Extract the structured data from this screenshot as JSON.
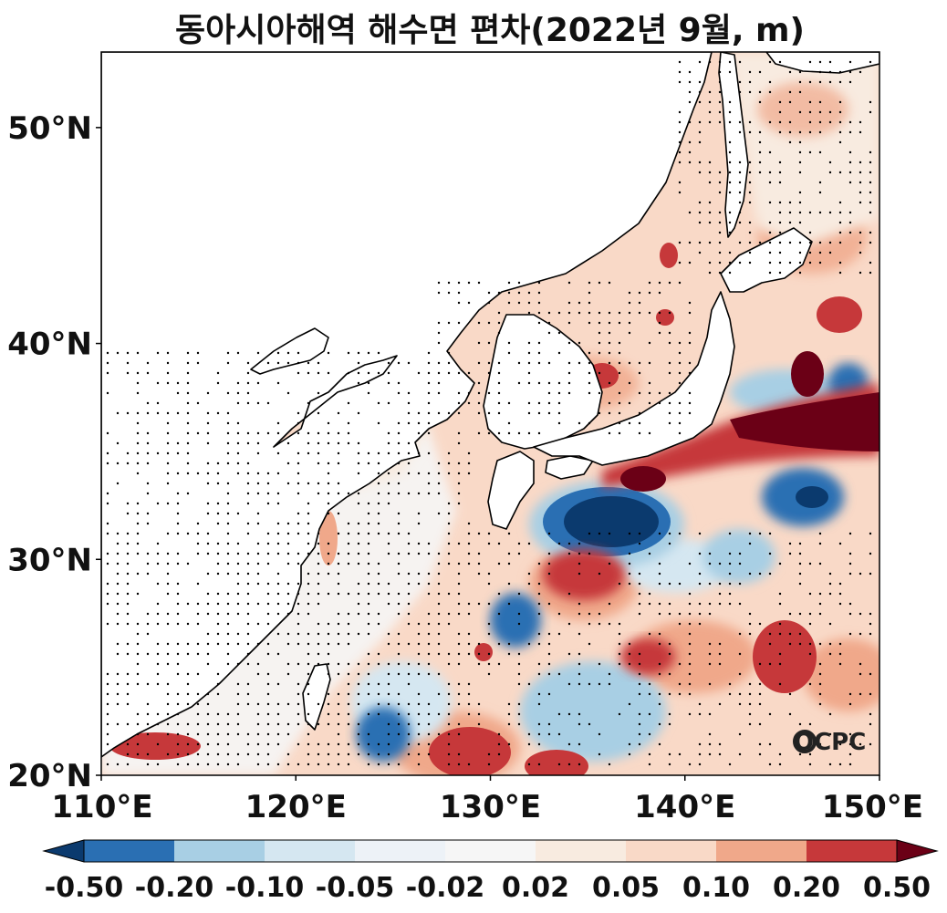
{
  "title": "동아시아해역 해수면 편차(2022년 9월, m)",
  "map": {
    "lon_range": [
      110,
      150
    ],
    "lat_range": [
      20,
      53.5
    ],
    "x_ticks": [
      "110°E",
      "120°E",
      "130°E",
      "140°E",
      "150°E"
    ],
    "y_ticks": [
      "20°N",
      "30°N",
      "40°N",
      "50°N"
    ],
    "variable": "sea level anomaly",
    "units": "m",
    "logo_text": "OCPC"
  },
  "colorbar": {
    "labels": [
      "-0.50",
      "-0.20",
      "-0.10",
      "-0.05",
      "-0.02",
      "0.02",
      "0.05",
      "0.10",
      "0.20",
      "0.50"
    ],
    "colors": [
      "#2a6fb3",
      "#a8cfe4",
      "#d5e7f1",
      "#edf2f7",
      "#f6f6f6",
      "#f8ebe0",
      "#f9d9c7",
      "#f0a88a",
      "#c6383a"
    ],
    "under_color": "#0b3a6e",
    "over_color": "#6b0016"
  },
  "colors": {
    "land": "#ffffff",
    "coastline": "#000000",
    "background_ocean": "#f9d9c7"
  }
}
